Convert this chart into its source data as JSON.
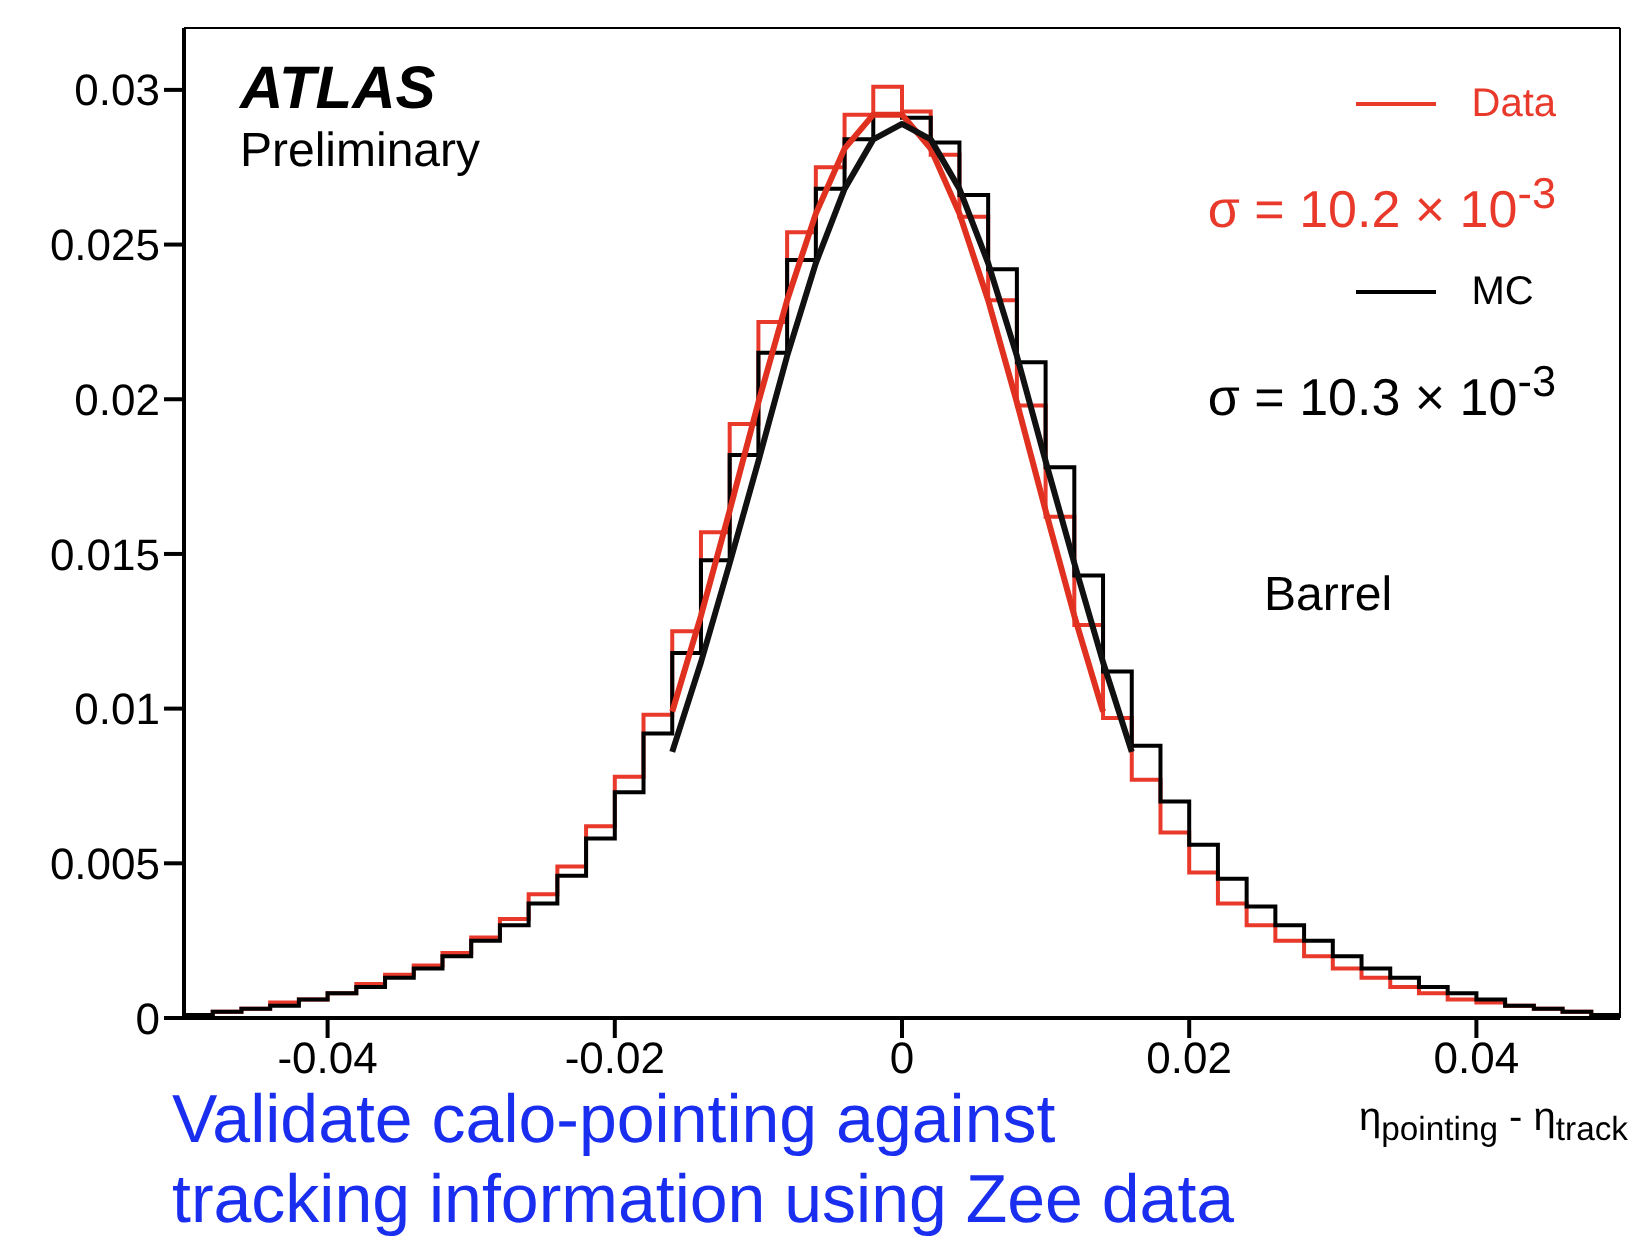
{
  "chart_data": {
    "type": "histogram",
    "xlabel": "η$_{pointing}$ - η$_{track}$",
    "bins": [
      -0.05,
      -0.048,
      -0.046,
      -0.044,
      -0.042,
      -0.04,
      -0.038,
      -0.036,
      -0.034,
      -0.032,
      -0.03,
      -0.028,
      -0.026,
      -0.024,
      -0.022,
      -0.02,
      -0.018,
      -0.016,
      -0.014,
      -0.012,
      -0.01,
      -0.008,
      -0.006,
      -0.004,
      -0.002,
      0,
      0.002,
      0.004,
      0.006,
      0.008,
      0.01,
      0.012,
      0.014,
      0.016,
      0.018,
      0.02,
      0.022,
      0.024,
      0.026,
      0.028,
      0.03,
      0.032,
      0.034,
      0.036,
      0.038,
      0.04,
      0.042,
      0.044,
      0.046,
      0.048,
      0.05
    ],
    "series": [
      {
        "name": "Data",
        "color": "#e8392b",
        "values": [
          0.0001,
          0.0002,
          0.0003,
          0.0005,
          0.0006,
          0.0008,
          0.0011,
          0.0014,
          0.0017,
          0.0021,
          0.0026,
          0.0032,
          0.004,
          0.0049,
          0.0062,
          0.0078,
          0.0098,
          0.0125,
          0.0157,
          0.0192,
          0.0225,
          0.0254,
          0.0275,
          0.0292,
          0.0301,
          0.0293,
          0.0279,
          0.0259,
          0.0232,
          0.0198,
          0.0162,
          0.0127,
          0.0097,
          0.0077,
          0.006,
          0.0047,
          0.0037,
          0.003,
          0.0025,
          0.002,
          0.0016,
          0.0013,
          0.001,
          0.0008,
          0.0006,
          0.0005,
          0.0004,
          0.0003,
          0.0002,
          0.0001
        ]
      },
      {
        "name": "MC",
        "color": "#000000",
        "values": [
          0.0001,
          0.0002,
          0.0003,
          0.0004,
          0.0006,
          0.0008,
          0.001,
          0.0013,
          0.0016,
          0.002,
          0.0025,
          0.003,
          0.0037,
          0.0046,
          0.0058,
          0.0073,
          0.0092,
          0.0118,
          0.0148,
          0.0182,
          0.0215,
          0.0245,
          0.0268,
          0.0284,
          0.0292,
          0.0291,
          0.0283,
          0.0266,
          0.0242,
          0.0212,
          0.0178,
          0.0143,
          0.0112,
          0.0088,
          0.007,
          0.0056,
          0.0045,
          0.0036,
          0.003,
          0.0025,
          0.002,
          0.0016,
          0.0013,
          0.001,
          0.0008,
          0.0006,
          0.0004,
          0.0003,
          0.0002,
          0.0001
        ]
      },
      {
        "type": "line",
        "color": "#e0301f",
        "x": [
          -0.016,
          -0.014,
          -0.012,
          -0.01,
          -0.008,
          -0.006,
          -0.004,
          -0.002,
          0,
          0.002,
          0.004,
          0.006,
          0.008,
          0.01,
          0.012,
          0.014
        ],
        "values": [
          0.0099,
          0.013,
          0.0164,
          0.0199,
          0.0232,
          0.026,
          0.0281,
          0.0292,
          0.0292,
          0.0281,
          0.026,
          0.0232,
          0.0199,
          0.0164,
          0.013,
          0.0099
        ]
      },
      {
        "type": "line",
        "color": "#111111",
        "x": [
          -0.016,
          -0.014,
          -0.012,
          -0.01,
          -0.008,
          -0.006,
          -0.004,
          -0.002,
          0,
          0.002,
          0.004,
          0.006,
          0.008,
          0.01,
          0.012,
          0.014,
          0.016
        ],
        "values": [
          0.0086,
          0.0115,
          0.0147,
          0.018,
          0.0214,
          0.0244,
          0.0268,
          0.0284,
          0.0289,
          0.0284,
          0.0268,
          0.0244,
          0.0214,
          0.018,
          0.0147,
          0.0115,
          0.0086
        ]
      }
    ],
    "xlim": [
      -0.05,
      0.05
    ],
    "xticks": [
      -0.04,
      -0.02,
      0,
      0.02,
      0.04
    ],
    "ylim": [
      0,
      0.032
    ],
    "yticks": [
      0,
      0.005,
      0.01,
      0.015,
      0.02,
      0.025,
      0.03
    ],
    "legend": "top right",
    "annotations": [
      "ATLAS",
      "Preliminary",
      "σ = 10.2 × 10$^{-3}$",
      "σ = 10.3 × 10$^{-3}$",
      "Barrel",
      "Validate calo-pointing against tracking information using Zee data"
    ]
  }
}
